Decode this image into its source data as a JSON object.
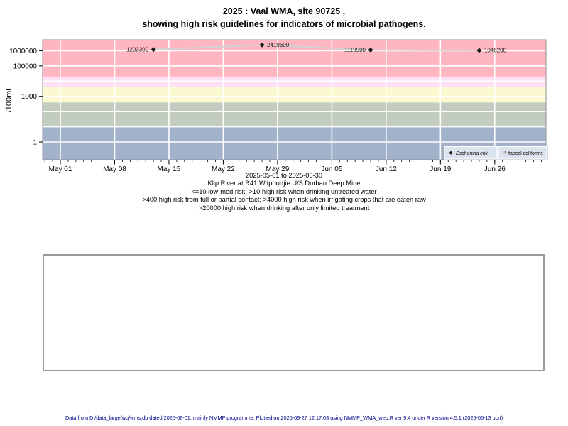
{
  "title": {
    "line1": "2025 : Vaal WMA, site 90725 ,",
    "line2": "showing high risk guidelines for indicators of microbial pathogens."
  },
  "captions": [
    "2025-05-01 to 2025-06-30",
    "Klip River at R41 Witpoortjie U/S Durban Deep Mine",
    "<=10 low-med risk; >10 high risk when drinking untreated water",
    ">400 high risk from full or partial contact; >4000 high risk when irrigating crops that are eaten raw",
    ">20000 high risk when drinking after only limited treatment"
  ],
  "footer": "Data from D:/data_large/wq/wms.db dated 2025-08-01, mainly NMMP programme. Plotted on 2025-09-27 12:17:03 using NMMP_WMA_web.R ver 9.4 under R version 4.5.1 (2025-06-13 ucrt)",
  "chart_data": {
    "type": "scatter",
    "title": "2025 : Vaal WMA, site 90725 , showing high risk guidelines for indicators of microbial pathogens.",
    "xlabel": "",
    "ylabel": "/100mL",
    "y_scale": "log10",
    "x_range_labels": [
      "2025-05-01",
      "2025-06-30"
    ],
    "x_ticks": [
      {
        "label": "May 01",
        "day": 0
      },
      {
        "label": "May 08",
        "day": 7
      },
      {
        "label": "May 15",
        "day": 14
      },
      {
        "label": "May 22",
        "day": 21
      },
      {
        "label": "May 29",
        "day": 28
      },
      {
        "label": "Jun 05",
        "day": 35
      },
      {
        "label": "Jun 12",
        "day": 42
      },
      {
        "label": "Jun 19",
        "day": 49
      },
      {
        "label": "Jun 26",
        "day": 56
      }
    ],
    "minor_tick_every_days": 1,
    "y_ticks": [
      {
        "label": "1",
        "value": 1
      },
      {
        "label": "1000",
        "value": 1000
      },
      {
        "label": "100000",
        "value": 100000
      },
      {
        "label": "1000000",
        "value": 1000000
      }
    ],
    "gridline_decades": [
      1,
      10,
      100,
      1000,
      10000,
      100000,
      1000000
    ],
    "grid_color": "#ffffff",
    "border_color": "#909090",
    "risk_bands": [
      {
        "min": null,
        "max": 10,
        "color": "#a1b2ca",
        "description": "low-med risk"
      },
      {
        "min": 10,
        "max": 400,
        "color": "#c2cdc0",
        "description": "high risk when drinking untreated water"
      },
      {
        "min": 400,
        "max": 4000,
        "color": "#fbf9d0",
        "description": "high risk from full or partial contact"
      },
      {
        "min": 4000,
        "max": 20000,
        "color": "#fde0f6",
        "description": "high risk when irrigating crops that are eaten raw"
      },
      {
        "min": 20000,
        "max": null,
        "color": "#ffb6c1",
        "description": "high risk when drinking after only limited treatment"
      }
    ],
    "series": [
      {
        "name": "Eschericia coli",
        "marker": "filled-diamond",
        "marker_color": "#1a1a1a",
        "points": [
          {
            "date": "May 13",
            "day": 12,
            "value": 1203300,
            "label": "1203300",
            "label_side": "left"
          },
          {
            "date": "May 27",
            "day": 26,
            "value": 2419600,
            "label": "2419600",
            "label_side": "right"
          },
          {
            "date": "Jun 10",
            "day": 40,
            "value": 1119900,
            "label": "1119900",
            "label_side": "left"
          },
          {
            "date": "Jun 24",
            "day": 54,
            "value": 1046200,
            "label": "1046200",
            "label_side": "right"
          }
        ]
      },
      {
        "name": "faecal coliforms",
        "marker": "open-circle",
        "marker_color": "#9a9a9a",
        "line_color": "#d2d2d2",
        "points": [
          {
            "date": "May 13",
            "day": 12,
            "value": 1203300
          },
          {
            "date": "May 27",
            "day": 26,
            "value": 2419600
          },
          {
            "date": "Jun 10",
            "day": 40,
            "value": 1119900
          },
          {
            "date": "Jun 24",
            "day": 54,
            "value": 1046200
          }
        ]
      }
    ],
    "legend": {
      "position": "bottom-right",
      "bg_color": "#dbe3ee",
      "items": [
        {
          "label": "Eschericia coli",
          "marker": "filled-diamond",
          "italic": true
        },
        {
          "label": "faecal coliforms",
          "marker": "open-circle",
          "italic": false
        }
      ]
    }
  }
}
